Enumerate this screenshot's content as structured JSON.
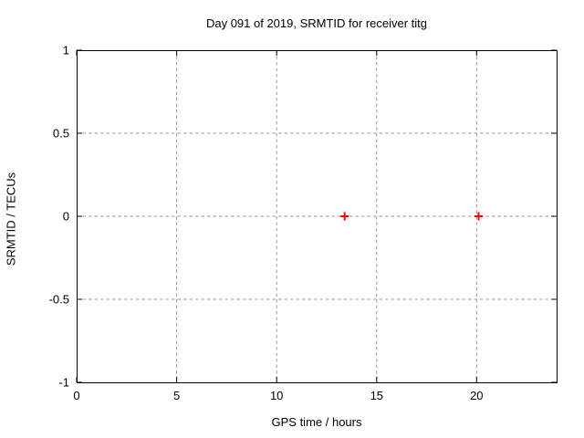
{
  "chart_data": {
    "type": "scatter",
    "title": "Day 091 of 2019, SRMTID for receiver titg",
    "xlabel": "GPS time / hours",
    "ylabel": "SRMTID / TECUs",
    "xlim": [
      0,
      24
    ],
    "ylim": [
      -1,
      1
    ],
    "xticks": [
      0,
      5,
      10,
      15,
      20
    ],
    "xtick_labels": [
      "0",
      "5",
      "10",
      "15",
      "20"
    ],
    "yticks": [
      -1,
      -0.5,
      0,
      0.5,
      1
    ],
    "ytick_labels": [
      "-1",
      "-0.5",
      "0",
      "0.5",
      "1"
    ],
    "grid": true,
    "legend": "none",
    "series": [
      {
        "name": "SRMTID",
        "marker": "plus",
        "color": "#ff0000",
        "points": [
          {
            "x": 13.4,
            "y": 0
          },
          {
            "x": 20.1,
            "y": 0
          }
        ]
      }
    ],
    "colors": {
      "axis": "#000000",
      "grid": "#9a9a9a",
      "text": "#000000",
      "background": "#ffffff"
    }
  }
}
